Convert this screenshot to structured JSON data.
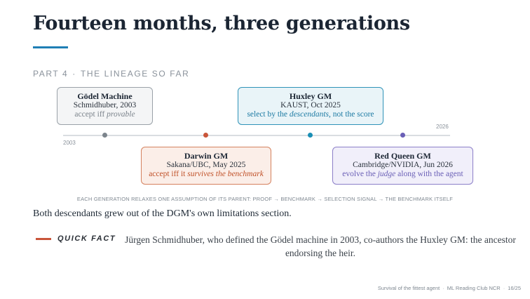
{
  "title": "Fourteen months, three generations",
  "section": {
    "part": "PART 4",
    "separator": "·",
    "name": "THE LINEAGE SO FAR"
  },
  "timeline": {
    "start_year": "2003",
    "end_year": "2026",
    "colors": {
      "godel": "#7c848c",
      "darwin": "#c9553a",
      "huxley": "#1a8fb5",
      "red_queen": "#6a5fb6"
    },
    "generations": {
      "godel": {
        "name": "Gödel Machine",
        "org": "Schmidhuber, 2003",
        "tag_pre": "accept iff ",
        "tag_em": "provable",
        "tag_post": ""
      },
      "huxley": {
        "name": "Huxley GM",
        "org": "KAUST, Oct 2025",
        "tag_pre": "select by the ",
        "tag_em": "descendants",
        "tag_post": ", not the score"
      },
      "darwin": {
        "name": "Darwin GM",
        "org": "Sakana/UBC, May 2025",
        "tag_pre": "accept iff it ",
        "tag_em": "survives the benchmark",
        "tag_post": ""
      },
      "red_queen": {
        "name": "Red Queen GM",
        "org": "Cambridge/NVIDIA, Jun 2026",
        "tag_pre": "evolve the ",
        "tag_em": "judge",
        "tag_post": " along with the agent"
      }
    }
  },
  "caption": "EACH GENERATION RELAXES ONE ASSUMPTION OF ITS PARENT: PROOF → BENCHMARK → SELECTION SIGNAL → THE BENCHMARK ITSELF",
  "body_text": "Both descendants grew out of the DGM's own limitations section.",
  "quick_fact": {
    "label": "QUICK FACT",
    "text": "Jürgen Schmidhuber, who defined the Gödel machine in 2003, co-authors the Huxley GM: the ancestor endorsing the heir."
  },
  "footer": {
    "talk": "Survival of the fittest agent",
    "sep": "·",
    "venue": "ML Reading Club NCR",
    "page": "16/25"
  }
}
